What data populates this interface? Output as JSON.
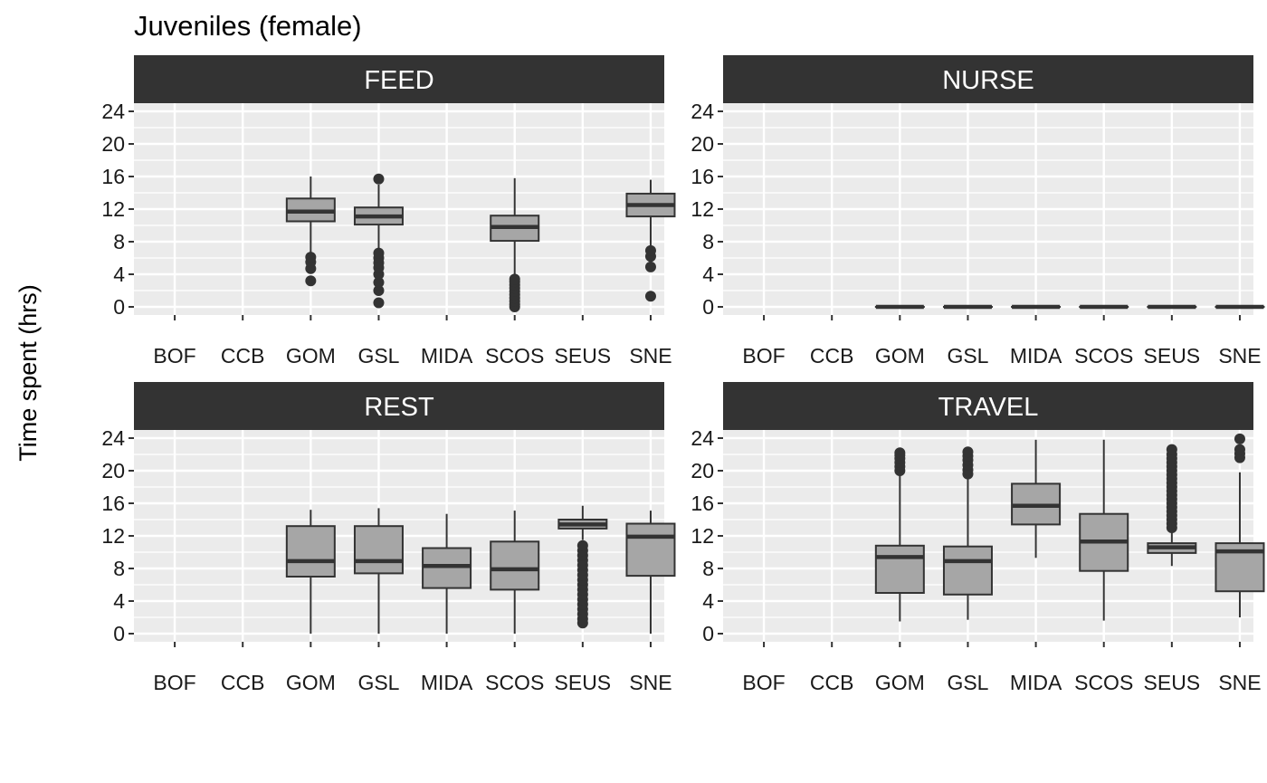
{
  "chart_data": {
    "type": "boxplot",
    "title": "Juveniles (female)",
    "ylabel": "Time spent (hrs)",
    "xlabel": "",
    "categories": [
      "BOF",
      "CCB",
      "GOM",
      "GSL",
      "MIDA",
      "SCOS",
      "SEUS",
      "SNE"
    ],
    "yticks": [
      0,
      4,
      8,
      12,
      16,
      20,
      24
    ],
    "ylim": [
      -1,
      25
    ],
    "grid": true,
    "colors": {
      "panel_bg": "#ebebeb",
      "strip_bg": "#333333",
      "strip_text": "#ffffff",
      "box_fill": "#a6a6a6",
      "box_line": "#333333"
    },
    "panels": [
      {
        "name": "FEED",
        "boxes": [
          {
            "category": "GOM",
            "min": 6.5,
            "q1": 10.5,
            "median": 11.7,
            "q3": 13.3,
            "max": 16.0,
            "outliers": [
              3.2,
              4.7,
              5.5,
              6.1
            ]
          },
          {
            "category": "GSL",
            "min": 7.2,
            "q1": 10.1,
            "median": 11.1,
            "q3": 12.2,
            "max": 15.0,
            "outliers": [
              0.5,
              2.0,
              3.0,
              4.0,
              4.8,
              5.4,
              6.0,
              6.6,
              15.7
            ]
          },
          {
            "category": "SCOS",
            "min": 3.8,
            "q1": 8.1,
            "median": 9.8,
            "q3": 11.2,
            "max": 15.8,
            "outliers": [
              0.0,
              0.3,
              0.7,
              1.1,
              1.5,
              1.9,
              2.3,
              2.7,
              3.1,
              3.4
            ]
          },
          {
            "category": "SNE",
            "min": 7.5,
            "q1": 11.1,
            "median": 12.5,
            "q3": 13.9,
            "max": 15.6,
            "outliers": [
              1.3,
              4.9,
              6.2,
              6.9
            ]
          }
        ]
      },
      {
        "name": "NURSE",
        "boxes": [
          {
            "category": "GOM",
            "min": 0,
            "q1": 0,
            "median": 0,
            "q3": 0,
            "max": 0,
            "outliers": []
          },
          {
            "category": "GSL",
            "min": 0,
            "q1": 0,
            "median": 0,
            "q3": 0,
            "max": 0,
            "outliers": []
          },
          {
            "category": "MIDA",
            "min": 0,
            "q1": 0,
            "median": 0,
            "q3": 0,
            "max": 0,
            "outliers": []
          },
          {
            "category": "SCOS",
            "min": 0,
            "q1": 0,
            "median": 0,
            "q3": 0,
            "max": 0,
            "outliers": []
          },
          {
            "category": "SEUS",
            "min": 0,
            "q1": 0,
            "median": 0,
            "q3": 0,
            "max": 0,
            "outliers": []
          },
          {
            "category": "SNE",
            "min": 0,
            "q1": 0,
            "median": 0,
            "q3": 0,
            "max": 0,
            "outliers": []
          }
        ]
      },
      {
        "name": "REST",
        "boxes": [
          {
            "category": "GOM",
            "min": 0.0,
            "q1": 7.0,
            "median": 8.9,
            "q3": 13.2,
            "max": 15.2,
            "outliers": []
          },
          {
            "category": "GSL",
            "min": 0.0,
            "q1": 7.4,
            "median": 8.9,
            "q3": 13.2,
            "max": 15.4,
            "outliers": []
          },
          {
            "category": "MIDA",
            "min": 0.0,
            "q1": 5.6,
            "median": 8.3,
            "q3": 10.5,
            "max": 14.7,
            "outliers": []
          },
          {
            "category": "SCOS",
            "min": 0.0,
            "q1": 5.4,
            "median": 7.9,
            "q3": 11.3,
            "max": 15.1,
            "outliers": []
          },
          {
            "category": "SEUS",
            "min": 11.5,
            "q1": 12.9,
            "median": 13.4,
            "q3": 14.0,
            "max": 15.7,
            "outliers": [
              1.3,
              1.8,
              2.4,
              3.0,
              3.6,
              4.2,
              4.8,
              5.4,
              6.0,
              6.6,
              7.2,
              7.8,
              8.4,
              9.0,
              9.6,
              10.2,
              10.8
            ]
          },
          {
            "category": "SNE",
            "min": 0.0,
            "q1": 7.1,
            "median": 11.9,
            "q3": 13.5,
            "max": 15.1,
            "outliers": []
          }
        ]
      },
      {
        "name": "TRAVEL",
        "boxes": [
          {
            "category": "GOM",
            "min": 1.5,
            "q1": 5.0,
            "median": 9.4,
            "q3": 10.8,
            "max": 19.5,
            "outliers": [
              20.0,
              20.5,
              21.0,
              21.5,
              21.9,
              22.2
            ]
          },
          {
            "category": "GSL",
            "min": 1.7,
            "q1": 4.8,
            "median": 8.9,
            "q3": 10.7,
            "max": 19.3,
            "outliers": [
              19.6,
              20.1,
              20.7,
              21.3,
              21.8,
              22.3
            ]
          },
          {
            "category": "MIDA",
            "min": 9.3,
            "q1": 13.4,
            "median": 15.7,
            "q3": 18.4,
            "max": 23.8,
            "outliers": []
          },
          {
            "category": "SCOS",
            "min": 1.6,
            "q1": 7.7,
            "median": 11.3,
            "q3": 14.7,
            "max": 23.8,
            "outliers": []
          },
          {
            "category": "SEUS",
            "min": 8.3,
            "q1": 9.9,
            "median": 10.6,
            "q3": 11.1,
            "max": 12.8,
            "outliers": [
              13.0,
              13.5,
              14.0,
              14.5,
              15.0,
              15.5,
              16.0,
              16.5,
              17.0,
              17.5,
              18.0,
              18.5,
              19.0,
              19.5,
              20.0,
              20.5,
              21.0,
              21.5,
              22.0,
              22.6
            ]
          },
          {
            "category": "SNE",
            "min": 2.0,
            "q1": 5.2,
            "median": 10.1,
            "q3": 11.1,
            "max": 19.8,
            "outliers": [
              21.6,
              22.1,
              22.6,
              23.9
            ]
          }
        ]
      }
    ]
  }
}
